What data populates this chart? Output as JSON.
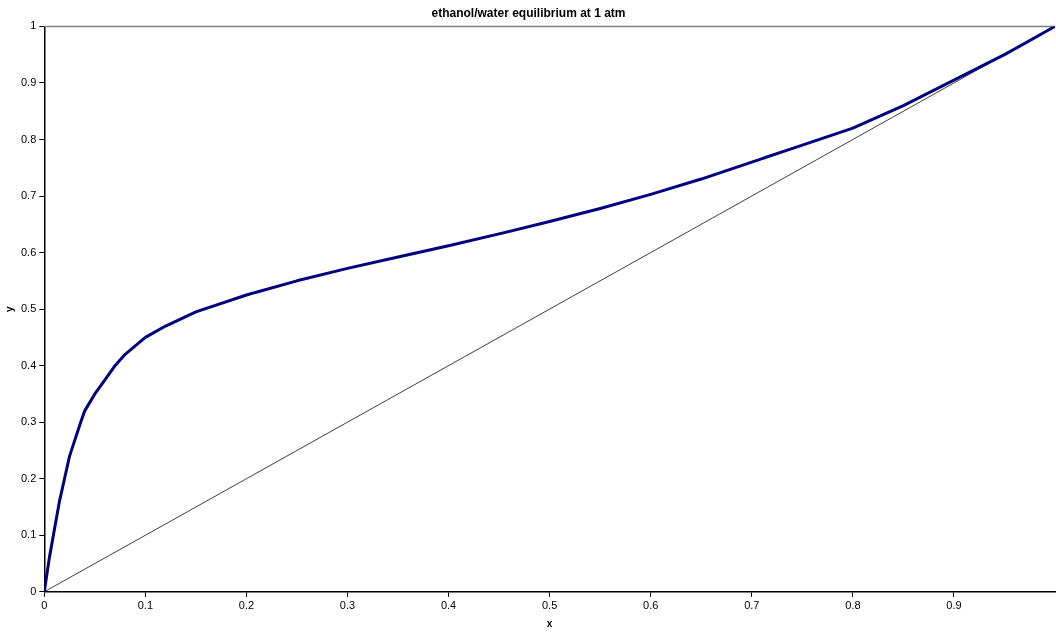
{
  "chart_data": {
    "type": "line",
    "title": "ethanol/water equilibrium at 1 atm",
    "xlabel": "x",
    "ylabel": "y",
    "xlim": [
      0,
      1
    ],
    "ylim": [
      0,
      1
    ],
    "xticks": [
      0,
      0.1,
      0.2,
      0.3,
      0.4,
      0.5,
      0.6,
      0.7,
      0.8,
      0.9
    ],
    "yticks": [
      0,
      0.1,
      0.2,
      0.3,
      0.4,
      0.5,
      0.6,
      0.7,
      0.8,
      0.9,
      1
    ],
    "grid": false,
    "legend": false,
    "marker": "none",
    "line_style": "solid",
    "series": [
      {
        "color": "#000080",
        "x": [
          0,
          0.005,
          0.01,
          0.015,
          0.02,
          0.025,
          0.036,
          0.04,
          0.05,
          0.06,
          0.07,
          0.08,
          0.1,
          0.12,
          0.15,
          0.2,
          0.25,
          0.3,
          0.35,
          0.4,
          0.45,
          0.5,
          0.55,
          0.6,
          0.65,
          0.7,
          0.75,
          0.8,
          0.85,
          0.9,
          0.95,
          1
        ],
        "values": [
          0,
          0.06,
          0.11,
          0.16,
          0.2,
          0.24,
          0.3,
          0.32,
          0.35,
          0.375,
          0.4,
          0.42,
          0.45,
          0.47,
          0.495,
          0.525,
          0.55,
          0.572,
          0.592,
          0.612,
          0.633,
          0.655,
          0.678,
          0.703,
          0.73,
          0.76,
          0.79,
          0.82,
          0.86,
          0.905,
          0.95,
          1
        ]
      },
      {
        "color": "#404040",
        "x": [
          0,
          1
        ],
        "values": [
          0,
          1
        ]
      }
    ]
  }
}
